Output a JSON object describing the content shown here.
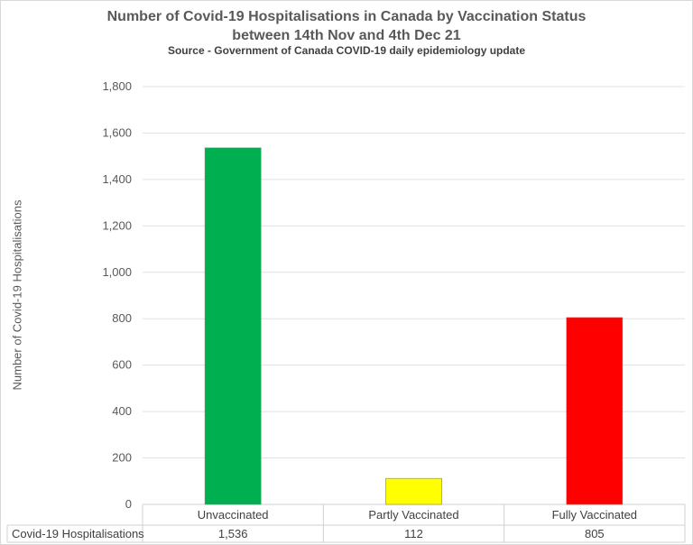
{
  "title": "Number of Covid-19 Hospitalisations in Canada by Vaccination Status between 14th Nov and 4th Dec 21",
  "title_line1": "Number of Covid-19 Hospitalisations in Canada by Vaccination Status",
  "title_line2": "between 14th Nov and 4th Dec 21",
  "subtitle": "Source - Government of Canada COVID-19 daily epidemiology update",
  "chart_data": {
    "type": "bar",
    "title": "Number of Covid-19 Hospitalisations in Canada by Vaccination Status between 14th Nov and 4th Dec 21",
    "subtitle": "Source - Government of Canada COVID-19 daily epidemiology update",
    "xlabel": "",
    "ylabel": "Number of Covid-19 Hospitalisations",
    "categories": [
      "Unvaccinated",
      "Partly Vaccinated",
      "Fully Vaccinated"
    ],
    "series": [
      {
        "name": "Covid-19 Hospitalisations",
        "values": [
          1536,
          112,
          805
        ],
        "value_labels": [
          "1,536",
          "112",
          "805"
        ],
        "colors": [
          "#00b050",
          "#ffff00",
          "#ff0000"
        ]
      }
    ],
    "ylim": [
      0,
      1800
    ],
    "yticks": [
      0,
      200,
      400,
      600,
      800,
      1000,
      1200,
      1400,
      1600,
      1800
    ],
    "ytick_labels": [
      "0",
      "200",
      "400",
      "600",
      "800",
      "1,000",
      "1,200",
      "1,400",
      "1,600",
      "1,800"
    ],
    "grid": true,
    "legend": "data table below chart"
  }
}
